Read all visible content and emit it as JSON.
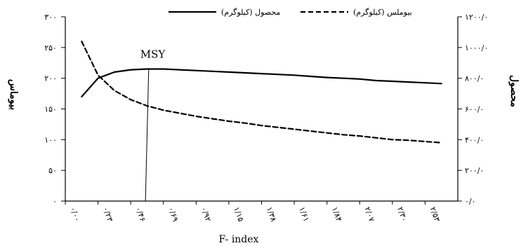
{
  "chart_data": {
    "type": "line",
    "xlabel": "F- index",
    "ylabel_left": "بیوماس",
    "ylabel_right": "محصول",
    "x_categories": [
      "۰/۰۰",
      "۰/۲۳",
      "۰/۴۶",
      "۰/۶۹",
      "۰/۹۲",
      "۱/۱۵",
      "۱/۳۸",
      "۱/۶۱",
      "۱/۸۴",
      "۲/۰۷",
      "۲/۳۰",
      "۲/۵۳"
    ],
    "y_left": {
      "lim": [
        0,
        300
      ],
      "ticks": [
        0,
        50,
        100,
        150,
        200,
        250,
        300
      ],
      "tick_labels": [
        "۰",
        "۵۰",
        "۱۰۰",
        "۱۵۰",
        "۲۰۰",
        "۲۵۰",
        "۳۰۰"
      ]
    },
    "y_right": {
      "lim": [
        0,
        1200
      ],
      "ticks": [
        0,
        200,
        400,
        600,
        800,
        1000,
        1200
      ],
      "tick_labels": [
        "۰/۰",
        "۲۰۰/۰",
        "۴۰۰/۰",
        "۶۰۰/۰",
        "۸۰۰/۰",
        "۱۰۰۰/۰",
        "۱۲۰۰/۰"
      ]
    },
    "x_positions": [
      0.5,
      1.0,
      1.5,
      2.0,
      2.5,
      3.0,
      3.5,
      4.0,
      4.5,
      5.0,
      5.5,
      6.0,
      6.5,
      7.0,
      7.5,
      8.0,
      8.5,
      9.0,
      9.5,
      10.0,
      10.5,
      11.0,
      11.5
    ],
    "series": [
      {
        "name": "محصول (کیلوگرم)",
        "axis": "right",
        "style": "solid",
        "values": [
          680,
          800,
          840,
          855,
          860,
          860,
          855,
          850,
          845,
          840,
          835,
          830,
          825,
          820,
          812,
          805,
          800,
          795,
          785,
          780,
          775,
          770,
          765
        ]
      },
      {
        "name": "بیوملس (کیلوگرم)",
        "axis": "left",
        "style": "dashed",
        "values": [
          260,
          205,
          180,
          165,
          155,
          148,
          143,
          138,
          134,
          130,
          127,
          123,
          120,
          117,
          114,
          111,
          108,
          106,
          103,
          100,
          99,
          97,
          95
        ]
      }
    ],
    "annotation": {
      "label": "MSY",
      "x": 2.55
    },
    "legend_placement": "top-center",
    "grid": false
  }
}
